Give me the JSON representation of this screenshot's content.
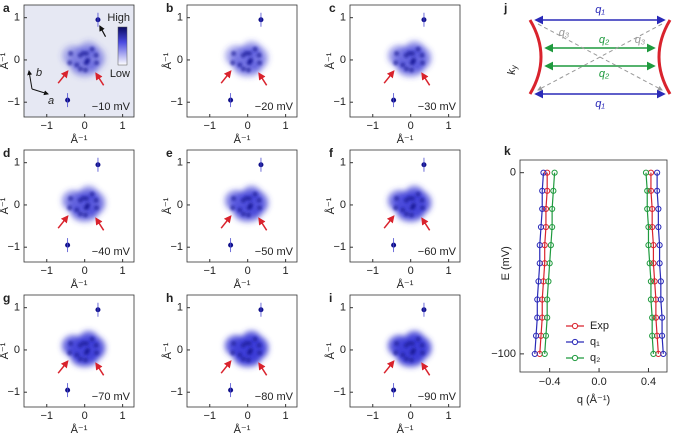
{
  "chart_data": [
    {
      "type": "map",
      "label": "a",
      "energy": "−10 mV",
      "xlim": [
        -1.6,
        1.3
      ],
      "ylim": [
        -1.35,
        1.3
      ],
      "xticks": [
        {
          "value": -1,
          "label": "−1"
        },
        0,
        1
      ],
      "yticks": [
        {
          "value": -1,
          "label": "−1"
        },
        0,
        1
      ],
      "xlabel": "Å⁻¹",
      "ylabel": "Å⁻¹",
      "colorbar": [
        "High",
        "Low"
      ],
      "lattice": [
        "b",
        "a"
      ]
    },
    {
      "type": "map",
      "label": "b",
      "energy": "−20 mV",
      "xlim": [
        -1.6,
        1.3
      ],
      "ylim": [
        -1.35,
        1.3
      ],
      "xticks": [
        {
          "value": -1,
          "label": "−1"
        },
        0,
        1
      ],
      "yticks": [
        {
          "value": -1,
          "label": "−1"
        },
        0,
        1
      ],
      "xlabel": "Å⁻¹",
      "ylabel": "Å⁻¹"
    },
    {
      "type": "map",
      "label": "c",
      "energy": "−30 mV",
      "xlim": [
        -1.6,
        1.3
      ],
      "ylim": [
        -1.35,
        1.3
      ],
      "xticks": [
        {
          "value": -1,
          "label": "−1"
        },
        0,
        1
      ],
      "yticks": [
        {
          "value": -1,
          "label": "−1"
        },
        0,
        1
      ],
      "xlabel": "Å⁻¹",
      "ylabel": "Å⁻¹"
    },
    {
      "type": "map",
      "label": "d",
      "energy": "−40 mV",
      "xlim": [
        -1.6,
        1.3
      ],
      "ylim": [
        -1.35,
        1.3
      ],
      "xticks": [
        {
          "value": -1,
          "label": "−1"
        },
        0,
        1
      ],
      "yticks": [
        {
          "value": -1,
          "label": "−1"
        },
        0,
        1
      ],
      "xlabel": "Å⁻¹",
      "ylabel": "Å⁻¹"
    },
    {
      "type": "map",
      "label": "e",
      "energy": "−50 mV",
      "xlim": [
        -1.6,
        1.3
      ],
      "ylim": [
        -1.35,
        1.3
      ],
      "xticks": [
        {
          "value": -1,
          "label": "−1"
        },
        0,
        1
      ],
      "yticks": [
        {
          "value": -1,
          "label": "−1"
        },
        0,
        1
      ],
      "xlabel": "Å⁻¹",
      "ylabel": "Å⁻¹"
    },
    {
      "type": "map",
      "label": "f",
      "energy": "−60 mV",
      "xlim": [
        -1.6,
        1.3
      ],
      "ylim": [
        -1.35,
        1.3
      ],
      "xticks": [
        {
          "value": -1,
          "label": "−1"
        },
        0,
        1
      ],
      "yticks": [
        {
          "value": -1,
          "label": "−1"
        },
        0,
        1
      ],
      "xlabel": "Å⁻¹",
      "ylabel": "Å⁻¹"
    },
    {
      "type": "map",
      "label": "g",
      "energy": "−70 mV",
      "xlim": [
        -1.6,
        1.3
      ],
      "ylim": [
        -1.35,
        1.3
      ],
      "xticks": [
        {
          "value": -1,
          "label": "−1"
        },
        0,
        1
      ],
      "yticks": [
        {
          "value": -1,
          "label": "−1"
        },
        0,
        1
      ],
      "xlabel": "Å⁻¹",
      "ylabel": "Å⁻¹"
    },
    {
      "type": "map",
      "label": "h",
      "energy": "−80 mV",
      "xlim": [
        -1.6,
        1.3
      ],
      "ylim": [
        -1.35,
        1.3
      ],
      "xticks": [
        {
          "value": -1,
          "label": "−1"
        },
        0,
        1
      ],
      "yticks": [
        {
          "value": -1,
          "label": "−1"
        },
        0,
        1
      ],
      "xlabel": "Å⁻¹",
      "ylabel": "Å⁻¹"
    },
    {
      "type": "map",
      "label": "i",
      "energy": "−90 mV",
      "xlim": [
        -1.6,
        1.3
      ],
      "ylim": [
        -1.35,
        1.3
      ],
      "xticks": [
        {
          "value": -1,
          "label": "−1"
        },
        0,
        1
      ],
      "yticks": [
        {
          "value": -1,
          "label": "−1"
        },
        0,
        1
      ],
      "xlabel": "Å⁻¹",
      "ylabel": "Å⁻¹"
    },
    {
      "type": "dispersion",
      "label": "k",
      "xlabel": "q (Å⁻¹)",
      "ylabel": "E (mV)",
      "xlim": [
        -0.64,
        0.55
      ],
      "ylim": [
        -110,
        7
      ],
      "xticks": [
        {
          "value": -0.4,
          "label": "−0.4"
        },
        {
          "value": 0,
          "label": "0.0"
        },
        0.4
      ],
      "yticks": [
        0,
        {
          "value": -100,
          "label": "−100"
        }
      ],
      "y": [
        0,
        -10,
        -20,
        -30,
        -40,
        -50,
        -60,
        -70,
        -80,
        -90,
        -100
      ],
      "series": [
        {
          "name": "Exp",
          "color": "#d9232d",
          "x_neg": [
            -0.42,
            -0.42,
            -0.43,
            -0.43,
            -0.44,
            -0.44,
            -0.45,
            -0.46,
            -0.46,
            -0.47,
            -0.48
          ],
          "x_pos": [
            0.42,
            0.42,
            0.43,
            0.43,
            0.44,
            0.44,
            0.45,
            0.46,
            0.46,
            0.47,
            0.48
          ]
        },
        {
          "name": "q₁",
          "color": "#2a2ab8",
          "x_neg": [
            -0.45,
            -0.46,
            -0.46,
            -0.47,
            -0.48,
            -0.48,
            -0.49,
            -0.5,
            -0.5,
            -0.51,
            -0.52
          ],
          "x_pos": [
            0.47,
            0.47,
            0.48,
            0.48,
            0.49,
            0.49,
            0.5,
            0.5,
            0.51,
            0.51,
            0.52
          ]
        },
        {
          "name": "q₂",
          "color": "#1f9a3e",
          "x_neg": [
            -0.36,
            -0.37,
            -0.38,
            -0.38,
            -0.39,
            -0.4,
            -0.41,
            -0.42,
            -0.42,
            -0.43,
            -0.44
          ],
          "x_pos": [
            0.38,
            0.39,
            0.39,
            0.4,
            0.4,
            0.41,
            0.42,
            0.42,
            0.43,
            0.43,
            0.44
          ]
        }
      ]
    }
  ],
  "diagram": {
    "label": "j",
    "axis": "k",
    "axis_sub": "y",
    "q1": "q₁",
    "q2": "q₂",
    "q3": "q₃"
  }
}
